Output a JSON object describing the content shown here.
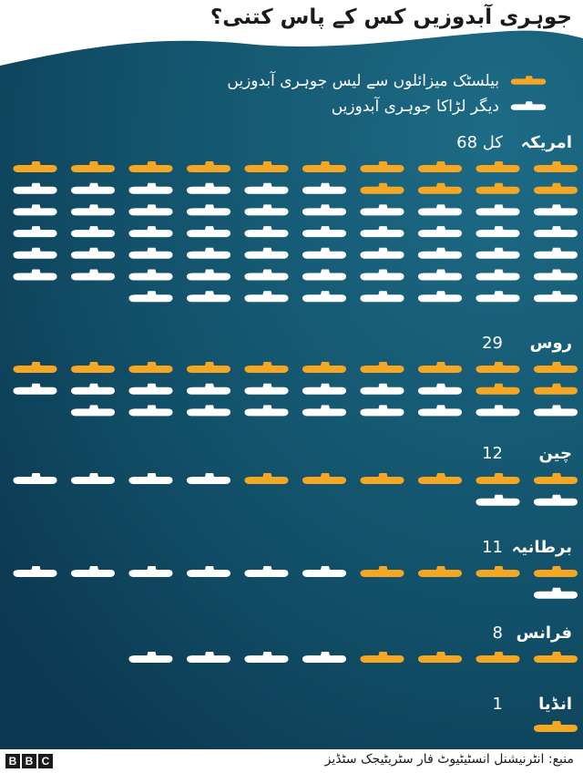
{
  "title": "جوہری آبدوزیں کس کے پاس کتنی؟",
  "legend": {
    "ballistic_label": "بیلسٹک میزائلوں سے لیس جوہری آبدوزیں",
    "attack_label": "دیگر لڑاکا جوہری آبدوزیں",
    "ballistic_color": "#f5a623",
    "attack_color": "#ffffff"
  },
  "total_prefix": "کل",
  "chart_data": {
    "type": "pictogram",
    "series": [
      {
        "name": "بیلسٹک میزائلوں سے لیس جوہری آبدوزیں",
        "color": "#f5a623"
      },
      {
        "name": "دیگر لڑاکا جوہری آبدوزیں",
        "color": "#ffffff"
      }
    ],
    "countries": [
      {
        "name": "امریکہ",
        "total_label": "68",
        "ballistic": 14,
        "attack": 54
      },
      {
        "name": "روس",
        "total_label": "29",
        "ballistic": 12,
        "attack": 17
      },
      {
        "name": "چین",
        "total_label": "12",
        "ballistic": 6,
        "attack": 6
      },
      {
        "name": "برطانیہ",
        "total_label": "11",
        "ballistic": 4,
        "attack": 7
      },
      {
        "name": "فرانس",
        "total_label": "8",
        "ballistic": 4,
        "attack": 4
      },
      {
        "name": "انڈیا",
        "total_label": "1",
        "ballistic": 1,
        "attack": 0
      }
    ]
  },
  "footer": {
    "source": "منبع: انٹرنیشنل انسٹیٹیوٹ فار سٹریٹیجک سٹڈیز",
    "logo_letters": [
      "B",
      "B",
      "C"
    ]
  },
  "colors": {
    "background_dark": "#0b3850",
    "background_light": "#1d6b86"
  }
}
